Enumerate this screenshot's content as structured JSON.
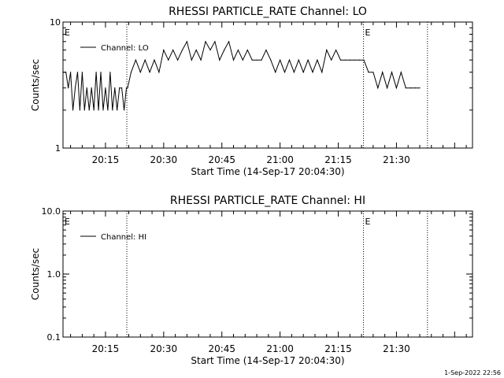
{
  "footer": {
    "timestamp": "1-Sep-2022 22:56"
  },
  "chart_data": [
    {
      "type": "line",
      "title": "RHESSI PARTICLE_RATE Channel: LO",
      "xlabel": "Start Time (14-Sep-17 20:04:30)",
      "ylabel": "Counts/sec",
      "yscale": "log",
      "xlim": [
        20.0675,
        21.8267
      ],
      "ylim": [
        1,
        10
      ],
      "xticks": [
        {
          "value": 20.25,
          "label": "20:15"
        },
        {
          "value": 20.5,
          "label": "20:30"
        },
        {
          "value": 20.75,
          "label": "20:45"
        },
        {
          "value": 21.0,
          "label": "21:00"
        },
        {
          "value": 21.25,
          "label": "21:15"
        },
        {
          "value": 21.5,
          "label": "21:30"
        }
      ],
      "yticks": [
        {
          "value": 1,
          "label": "1"
        },
        {
          "value": 10,
          "label": "10"
        }
      ],
      "legend": {
        "entry": "Channel: LO",
        "placement": "top-left"
      },
      "markers": [
        {
          "x": 20.0675,
          "label": "E"
        },
        {
          "x": 20.3417,
          "label": ""
        },
        {
          "x": 21.3583,
          "label": "E"
        },
        {
          "x": 21.6333,
          "label": ""
        }
      ],
      "series": [
        {
          "x": [
            20.07,
            20.08,
            20.09,
            20.1,
            20.11,
            20.12,
            20.13,
            20.14,
            20.15,
            20.16,
            20.17,
            20.18,
            20.19,
            20.2,
            20.21,
            20.22,
            20.23,
            20.24,
            20.25,
            20.26,
            20.27,
            20.28,
            20.29,
            20.3,
            20.31,
            20.32,
            20.33,
            20.34,
            20.345,
            20.36,
            20.38,
            20.4,
            20.42,
            20.44,
            20.46,
            20.48,
            20.5,
            20.52,
            20.54,
            20.56,
            20.58,
            20.6,
            20.62,
            20.64,
            20.66,
            20.68,
            20.7,
            20.72,
            20.74,
            20.76,
            20.78,
            20.8,
            20.82,
            20.84,
            20.86,
            20.88,
            20.9,
            20.92,
            20.94,
            20.96,
            20.98,
            21.0,
            21.02,
            21.04,
            21.06,
            21.08,
            21.1,
            21.12,
            21.14,
            21.16,
            21.18,
            21.2,
            21.22,
            21.24,
            21.26,
            21.28,
            21.3,
            21.32,
            21.34,
            21.36,
            21.38,
            21.4,
            21.42,
            21.44,
            21.46,
            21.48,
            21.5,
            21.52,
            21.54,
            21.56,
            21.58,
            21.6
          ],
          "values": [
            4,
            4,
            3,
            4,
            2,
            3,
            4,
            2,
            4,
            2,
            3,
            2,
            3,
            2,
            4,
            2,
            4,
            2,
            3,
            2,
            4,
            2,
            3,
            2,
            3,
            3,
            2,
            3,
            3,
            4,
            5,
            4,
            5,
            4,
            5,
            4,
            6,
            5,
            6,
            5,
            6,
            7,
            5,
            6,
            5,
            7,
            6,
            7,
            5,
            6,
            7,
            5,
            6,
            5,
            6,
            5,
            5,
            5,
            6,
            5,
            4,
            5,
            4,
            5,
            4,
            5,
            4,
            5,
            4,
            5,
            4,
            6,
            5,
            6,
            5,
            5,
            5,
            5,
            5,
            5,
            4,
            4,
            3,
            4,
            3,
            4,
            3,
            4,
            3,
            3,
            3,
            3
          ]
        }
      ]
    },
    {
      "type": "line",
      "title": "RHESSI PARTICLE_RATE Channel: HI",
      "xlabel": "Start Time (14-Sep-17 20:04:30)",
      "ylabel": "Counts/sec",
      "yscale": "log",
      "xlim": [
        20.0675,
        21.8267
      ],
      "ylim": [
        0.1,
        10
      ],
      "xticks": [
        {
          "value": 20.25,
          "label": "20:15"
        },
        {
          "value": 20.5,
          "label": "20:30"
        },
        {
          "value": 20.75,
          "label": "20:45"
        },
        {
          "value": 21.0,
          "label": "21:00"
        },
        {
          "value": 21.25,
          "label": "21:15"
        },
        {
          "value": 21.5,
          "label": "21:30"
        }
      ],
      "yticks": [
        {
          "value": 0.1,
          "label": "0.1"
        },
        {
          "value": 1,
          "label": "1.0"
        },
        {
          "value": 10,
          "label": "10.0"
        }
      ],
      "legend": {
        "entry": "Channel: HI",
        "placement": "top-left"
      },
      "markers": [
        {
          "x": 20.0675,
          "label": "E"
        },
        {
          "x": 20.3417,
          "label": ""
        },
        {
          "x": 21.3583,
          "label": "E"
        },
        {
          "x": 21.6333,
          "label": ""
        }
      ],
      "series": []
    }
  ]
}
